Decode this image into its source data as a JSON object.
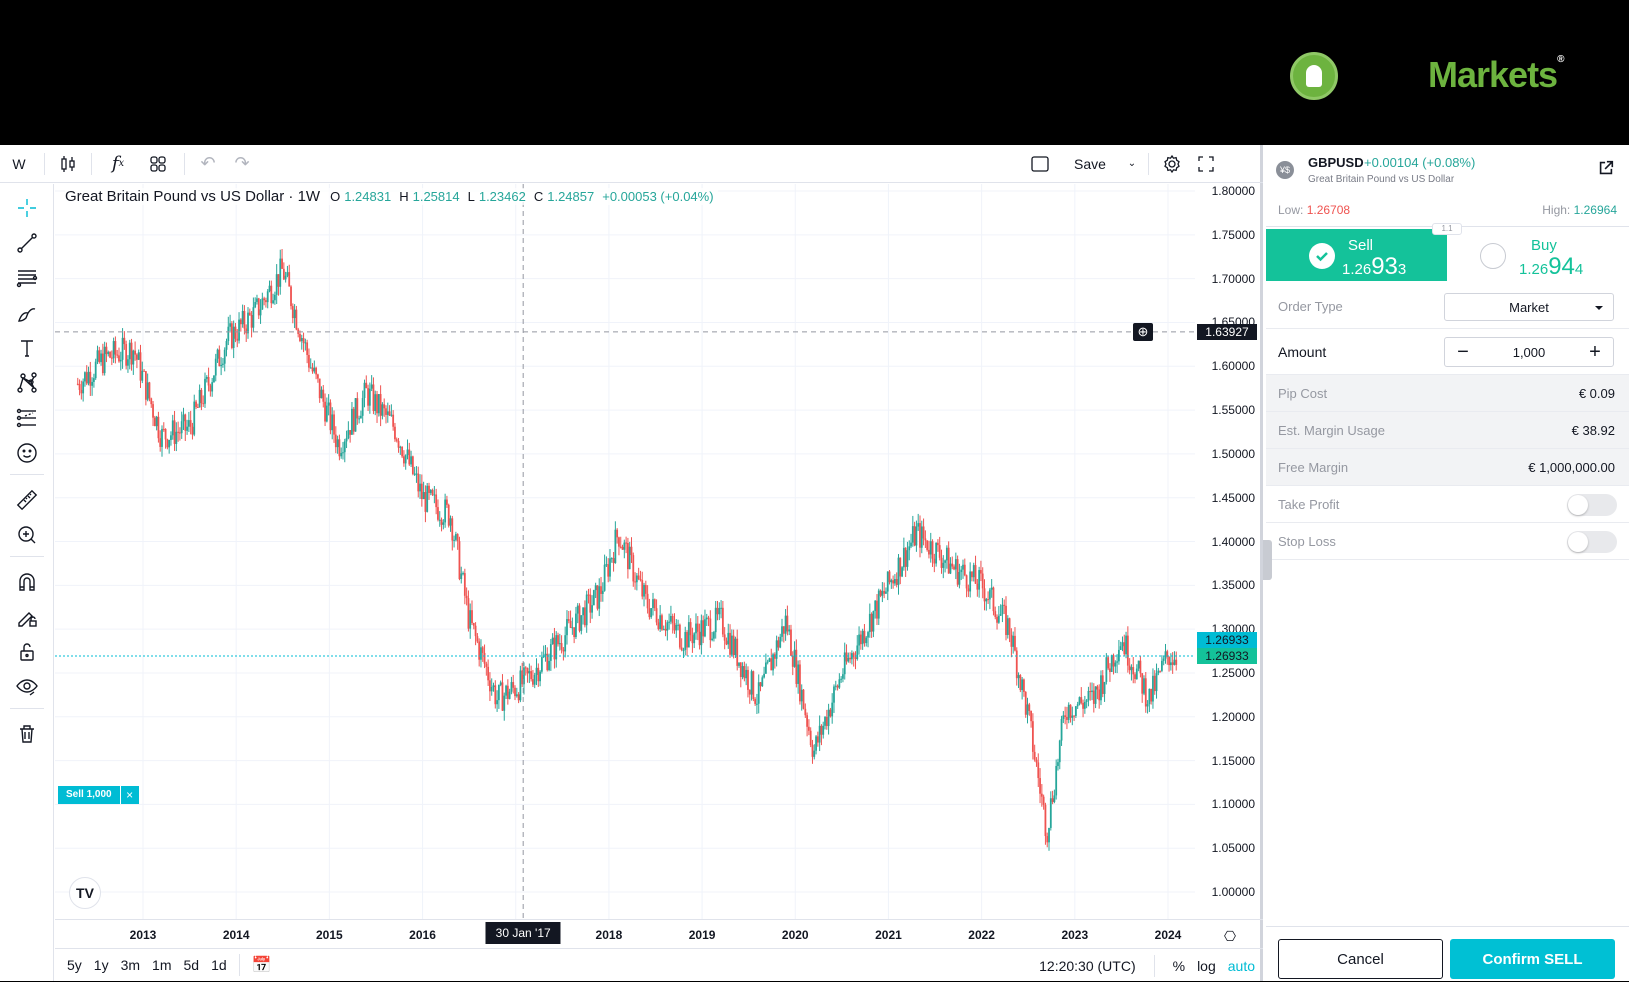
{
  "brand": {
    "name": "Markets",
    "reg_mark": "®",
    "accent": "#6db33f"
  },
  "toolbar": {
    "interval": "W",
    "save_label": "Save"
  },
  "legend": {
    "title": "Great Britain Pound vs US Dollar · 1W",
    "o_key": "O",
    "o_val": "1.24831",
    "h_key": "H",
    "h_val": "1.25814",
    "l_key": "L",
    "l_val": "1.23462",
    "c_key": "C",
    "c_val": "1.24857",
    "change": "+0.00053 (+0.04%)"
  },
  "price_axis": {
    "labels": [
      "1.80000",
      "1.75000",
      "1.70000",
      "1.65000",
      "1.60000",
      "1.55000",
      "1.50000",
      "1.45000",
      "1.40000",
      "1.35000",
      "1.30000",
      "1.25000",
      "1.20000",
      "1.15000",
      "1.10000",
      "1.05000",
      "1.00000"
    ],
    "crosshair_price": "1.63927",
    "sell_tag_1": "1.26933",
    "sell_tag_2": "1.26933"
  },
  "time_axis": {
    "labels": [
      "2013",
      "2014",
      "2015",
      "2016",
      "2017",
      "2018",
      "2019",
      "2020",
      "2021",
      "2022",
      "2023",
      "2024"
    ],
    "crosshair_date": "30 Jan '17"
  },
  "bottom_bar": {
    "ranges": [
      "5y",
      "1y",
      "3m",
      "1m",
      "5d",
      "1d"
    ],
    "clock": "12:20:30 (UTC)",
    "percent": "%",
    "log": "log",
    "auto": "auto"
  },
  "chart_overlay": {
    "sell_line_label": "Sell 1,000",
    "sell_line_close": "×",
    "tv_logo": "TV"
  },
  "order_panel": {
    "symbol": "GBPUSD",
    "symbol_change": "+0.00104  (+0.08%)",
    "symbol_desc": "Great Britain Pound vs US Dollar",
    "symbol_icon": "¥$",
    "low_label": "Low: ",
    "low_value": "1.26708",
    "high_label": "High: ",
    "high_value": "1.26964",
    "spread": "1.1",
    "sell": {
      "label": "Sell",
      "price_small": "1.26",
      "price_big": "93",
      "price_tail": "3"
    },
    "buy": {
      "label": "Buy",
      "price_small": "1.26",
      "price_big": "94",
      "price_tail": "4"
    },
    "order_type_label": "Order Type",
    "order_type_value": "Market",
    "amount_label": "Amount",
    "amount_value": "1,000",
    "amount_minus": "−",
    "amount_plus": "+",
    "pip_cost_label": "Pip Cost",
    "pip_cost_value": "€ 0.09",
    "margin_label": "Est. Margin Usage",
    "margin_value": "€ 38.92",
    "free_margin_label": "Free Margin",
    "free_margin_value": "€ 1,000,000.00",
    "take_profit_label": "Take Profit",
    "stop_loss_label": "Stop Loss",
    "cancel_label": "Cancel",
    "confirm_label": "Confirm SELL"
  },
  "colors": {
    "up": "#26a69a",
    "down": "#ef5350",
    "sell_green": "#14c29a",
    "confirm_cyan": "#00c0d4"
  },
  "chart_data": {
    "type": "candlestick",
    "title": "Great Britain Pound vs US Dollar · 1W",
    "symbol": "GBPUSD",
    "interval": "1W",
    "ylim": [
      1.0,
      1.8
    ],
    "yticks": [
      1.0,
      1.05,
      1.1,
      1.15,
      1.2,
      1.25,
      1.3,
      1.35,
      1.4,
      1.45,
      1.5,
      1.55,
      1.6,
      1.65,
      1.7,
      1.75,
      1.8
    ],
    "xticks": [
      "2013",
      "2014",
      "2015",
      "2016",
      "2017",
      "2018",
      "2019",
      "2020",
      "2021",
      "2022",
      "2023",
      "2024"
    ],
    "approx_close_path": [
      {
        "x": 2012.3,
        "y": 1.58
      },
      {
        "x": 2012.6,
        "y": 1.61
      },
      {
        "x": 2012.9,
        "y": 1.62
      },
      {
        "x": 2013.2,
        "y": 1.52
      },
      {
        "x": 2013.5,
        "y": 1.53
      },
      {
        "x": 2013.9,
        "y": 1.63
      },
      {
        "x": 2014.2,
        "y": 1.66
      },
      {
        "x": 2014.5,
        "y": 1.71
      },
      {
        "x": 2014.8,
        "y": 1.6
      },
      {
        "x": 2015.1,
        "y": 1.51
      },
      {
        "x": 2015.4,
        "y": 1.57
      },
      {
        "x": 2015.7,
        "y": 1.53
      },
      {
        "x": 2016.0,
        "y": 1.45
      },
      {
        "x": 2016.3,
        "y": 1.43
      },
      {
        "x": 2016.5,
        "y": 1.31
      },
      {
        "x": 2016.8,
        "y": 1.22
      },
      {
        "x": 2017.1,
        "y": 1.24
      },
      {
        "x": 2017.5,
        "y": 1.29
      },
      {
        "x": 2017.9,
        "y": 1.34
      },
      {
        "x": 2018.1,
        "y": 1.41
      },
      {
        "x": 2018.4,
        "y": 1.33
      },
      {
        "x": 2018.8,
        "y": 1.29
      },
      {
        "x": 2019.2,
        "y": 1.31
      },
      {
        "x": 2019.6,
        "y": 1.22
      },
      {
        "x": 2019.9,
        "y": 1.31
      },
      {
        "x": 2020.2,
        "y": 1.16
      },
      {
        "x": 2020.5,
        "y": 1.25
      },
      {
        "x": 2020.9,
        "y": 1.33
      },
      {
        "x": 2021.3,
        "y": 1.41
      },
      {
        "x": 2021.7,
        "y": 1.37
      },
      {
        "x": 2022.0,
        "y": 1.35
      },
      {
        "x": 2022.3,
        "y": 1.3
      },
      {
        "x": 2022.5,
        "y": 1.2
      },
      {
        "x": 2022.7,
        "y": 1.07
      },
      {
        "x": 2022.9,
        "y": 1.21
      },
      {
        "x": 2023.2,
        "y": 1.22
      },
      {
        "x": 2023.5,
        "y": 1.29
      },
      {
        "x": 2023.8,
        "y": 1.22
      },
      {
        "x": 2024.0,
        "y": 1.27
      },
      {
        "x": 2024.1,
        "y": 1.269
      }
    ],
    "last_ohlc": {
      "open": 1.24831,
      "high": 1.25814,
      "low": 1.23462,
      "close": 1.24857
    },
    "crosshair": {
      "price": 1.63927,
      "date": "30 Jan '17"
    },
    "order_line": {
      "label": "Sell 1,000",
      "price": 1.26933
    }
  }
}
